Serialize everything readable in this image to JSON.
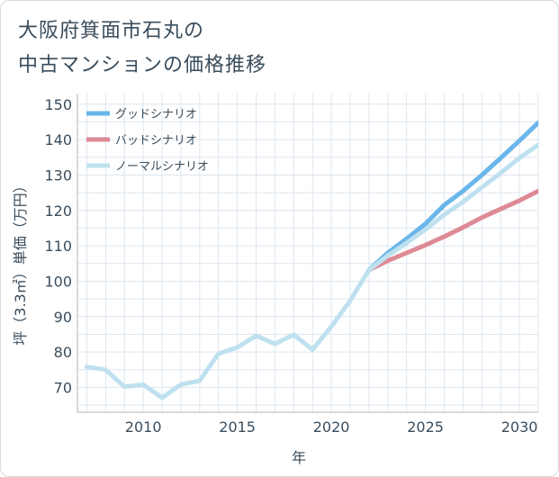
{
  "title_lines": [
    "大阪府箕面市石丸の",
    "中古マンションの価格推移"
  ],
  "chart_data": {
    "type": "line",
    "title": "大阪府箕面市石丸の中古マンションの価格推移",
    "xlabel": "年",
    "ylabel": "坪（3.3㎡）単価（万円）",
    "xlim": [
      2006.5,
      2031
    ],
    "ylim": [
      63,
      153
    ],
    "x_ticks": [
      2010,
      2015,
      2020,
      2025,
      2030
    ],
    "y_ticks": [
      70,
      80,
      90,
      100,
      110,
      120,
      130,
      140,
      150
    ],
    "grid": true,
    "legend_position": "top-left",
    "colors": {
      "good": "#6ab6ea",
      "bad": "#de8a94",
      "normal": "#bfe1ef",
      "grid": "#dde6ef",
      "axis": "#aab4be"
    },
    "series": [
      {
        "key": "historical",
        "name": "",
        "x": [
          2007,
          2008,
          2009,
          2010,
          2011,
          2012,
          2013,
          2014,
          2015,
          2016,
          2017,
          2018,
          2019,
          2020,
          2021,
          2022
        ],
        "values": [
          75.8,
          75.0,
          70.2,
          70.8,
          67.1,
          70.8,
          71.9,
          79.5,
          81.3,
          84.6,
          82.3,
          84.9,
          80.7,
          87.2,
          94.5,
          103.2
        ]
      },
      {
        "key": "good",
        "name": "グッドシナリオ",
        "x": [
          2022,
          2023,
          2024,
          2025,
          2026,
          2027,
          2028,
          2029,
          2030,
          2031
        ],
        "values": [
          103.2,
          108.0,
          112.0,
          116.2,
          121.5,
          125.5,
          130.0,
          134.8,
          139.7,
          144.8
        ]
      },
      {
        "key": "bad",
        "name": "バッドシナリオ",
        "x": [
          2022,
          2023,
          2024,
          2025,
          2026,
          2027,
          2028,
          2029,
          2030,
          2031
        ],
        "values": [
          103.2,
          105.8,
          108.0,
          110.2,
          112.6,
          115.2,
          118.0,
          120.4,
          122.8,
          125.5
        ]
      },
      {
        "key": "normal",
        "name": "ノーマルシナリオ",
        "x": [
          2022,
          2023,
          2024,
          2025,
          2026,
          2027,
          2028,
          2029,
          2030,
          2031
        ],
        "values": [
          103.2,
          107.2,
          110.8,
          114.6,
          118.8,
          122.4,
          126.5,
          130.6,
          134.8,
          138.5
        ]
      }
    ]
  }
}
